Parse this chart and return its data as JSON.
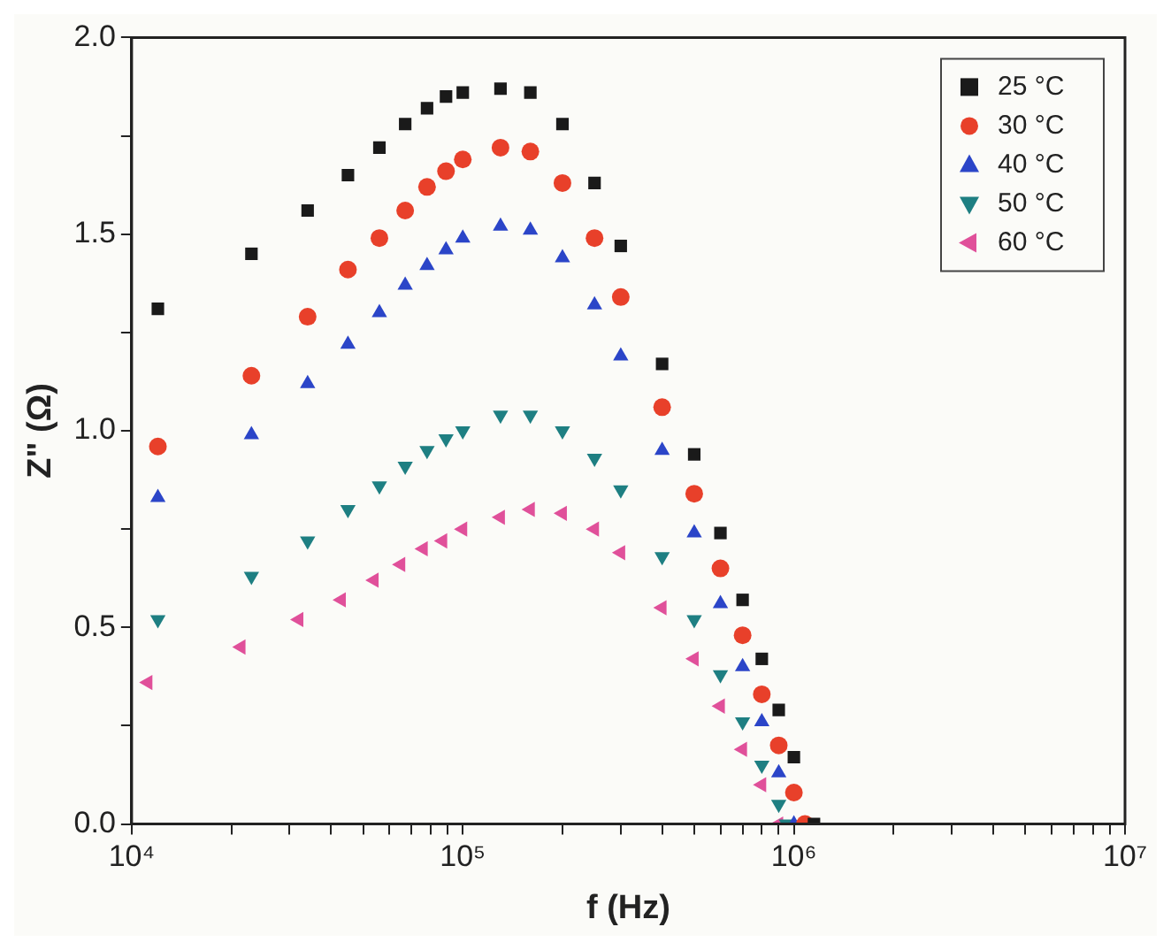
{
  "chart_data": {
    "type": "scatter",
    "xlabel": "f (Hz)",
    "ylabel": "Z\" (Ω)",
    "log": "x",
    "grid": false,
    "legend": "top right",
    "xlim": [
      10000,
      10000000
    ],
    "xticks": [
      {
        "value": 10000,
        "label": "10⁴"
      },
      {
        "value": 20000,
        "label": null
      },
      {
        "value": 30000,
        "label": null
      },
      {
        "value": 40000,
        "label": null
      },
      {
        "value": 50000,
        "label": null
      },
      {
        "value": 60000,
        "label": null
      },
      {
        "value": 70000,
        "label": null
      },
      {
        "value": 80000,
        "label": null
      },
      {
        "value": 90000,
        "label": null
      },
      {
        "value": 100000,
        "label": "10⁵"
      },
      {
        "value": 200000,
        "label": null
      },
      {
        "value": 300000,
        "label": null
      },
      {
        "value": 400000,
        "label": null
      },
      {
        "value": 500000,
        "label": null
      },
      {
        "value": 600000,
        "label": null
      },
      {
        "value": 700000,
        "label": null
      },
      {
        "value": 800000,
        "label": null
      },
      {
        "value": 900000,
        "label": null
      },
      {
        "value": 1000000,
        "label": "10⁶"
      },
      {
        "value": 2000000,
        "label": null
      },
      {
        "value": 3000000,
        "label": null
      },
      {
        "value": 4000000,
        "label": null
      },
      {
        "value": 5000000,
        "label": null
      },
      {
        "value": 6000000,
        "label": null
      },
      {
        "value": 7000000,
        "label": null
      },
      {
        "value": 8000000,
        "label": null
      },
      {
        "value": 9000000,
        "label": null
      },
      {
        "value": 10000000,
        "label": "10⁷"
      }
    ],
    "ylim": [
      0,
      2
    ],
    "yticks": [
      {
        "value": 0,
        "label": "0.0"
      },
      {
        "value": 0.25,
        "label": null
      },
      {
        "value": 0.5,
        "label": "0.5"
      },
      {
        "value": 0.75,
        "label": null
      },
      {
        "value": 1,
        "label": "1.0"
      },
      {
        "value": 1.25,
        "label": null
      },
      {
        "value": 1.5,
        "label": "1.5"
      },
      {
        "value": 1.75,
        "label": null
      },
      {
        "value": 2,
        "label": "2.0"
      }
    ],
    "series": [
      {
        "name": "25 °C",
        "color": "#1a1a1a",
        "marker": "square",
        "x": [
          12000,
          23000,
          34000,
          45000,
          56000,
          67000,
          78000,
          89000,
          100000,
          130000,
          160000,
          200000,
          250000,
          300000,
          400000,
          500000,
          600000,
          700000,
          800000,
          900000,
          1000000,
          1150000
        ],
        "values": [
          1.31,
          1.45,
          1.56,
          1.65,
          1.72,
          1.78,
          1.82,
          1.85,
          1.86,
          1.87,
          1.86,
          1.78,
          1.63,
          1.47,
          1.17,
          0.94,
          0.74,
          0.57,
          0.42,
          0.29,
          0.17,
          0
        ]
      },
      {
        "name": "30 °C",
        "color": "#e8402a",
        "marker": "circle",
        "x": [
          12000,
          23000,
          34000,
          45000,
          56000,
          67000,
          78000,
          89000,
          100000,
          130000,
          160000,
          200000,
          250000,
          300000,
          400000,
          500000,
          600000,
          700000,
          800000,
          900000,
          1000000,
          1080000
        ],
        "values": [
          0.96,
          1.14,
          1.29,
          1.41,
          1.49,
          1.56,
          1.62,
          1.66,
          1.69,
          1.72,
          1.71,
          1.63,
          1.49,
          1.34,
          1.06,
          0.84,
          0.65,
          0.48,
          0.33,
          0.2,
          0.08,
          0
        ]
      },
      {
        "name": "40 °C",
        "color": "#2b45c8",
        "marker": "triangle",
        "x": [
          12000,
          23000,
          34000,
          45000,
          56000,
          67000,
          78000,
          89000,
          100000,
          130000,
          160000,
          200000,
          250000,
          300000,
          400000,
          500000,
          600000,
          700000,
          800000,
          900000,
          1000000
        ],
        "values": [
          0.83,
          0.99,
          1.12,
          1.22,
          1.3,
          1.37,
          1.42,
          1.46,
          1.49,
          1.52,
          1.51,
          1.44,
          1.32,
          1.19,
          0.95,
          0.74,
          0.56,
          0.4,
          0.26,
          0.13,
          0
        ]
      },
      {
        "name": "50 °C",
        "color": "#1e7f82",
        "marker": "triangle-down",
        "x": [
          12000,
          23000,
          34000,
          45000,
          56000,
          67000,
          78000,
          89000,
          100000,
          130000,
          160000,
          200000,
          250000,
          300000,
          400000,
          500000,
          600000,
          700000,
          800000,
          900000,
          950000
        ],
        "values": [
          0.52,
          0.63,
          0.72,
          0.8,
          0.86,
          0.91,
          0.95,
          0.98,
          1.0,
          1.04,
          1.04,
          1.0,
          0.93,
          0.85,
          0.68,
          0.52,
          0.38,
          0.26,
          0.15,
          0.05,
          0
        ]
      },
      {
        "name": "60 °C",
        "color": "#e0509a",
        "marker": "triangle-left",
        "x": [
          11200,
          21400,
          32000,
          43000,
          54000,
          65000,
          76000,
          87000,
          100000,
          130000,
          160000,
          200000,
          250000,
          300000,
          400000,
          500000,
          600000,
          700000,
          800000,
          900000
        ],
        "values": [
          0.36,
          0.45,
          0.52,
          0.57,
          0.62,
          0.66,
          0.7,
          0.72,
          0.75,
          0.78,
          0.8,
          0.79,
          0.75,
          0.69,
          0.55,
          0.42,
          0.3,
          0.19,
          0.1,
          0
        ]
      }
    ]
  }
}
